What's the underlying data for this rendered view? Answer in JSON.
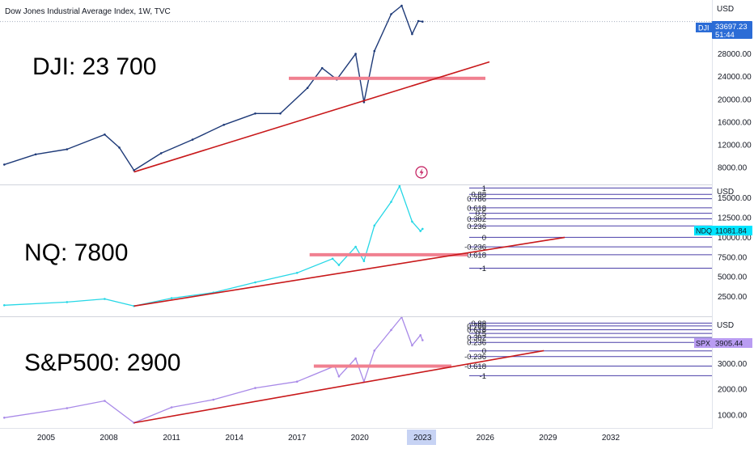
{
  "title": "Dow Jones Industrial Average Index, 1W, TVC",
  "colors": {
    "dji": "#1e3a78",
    "ndq": "#26d7e6",
    "spx": "#a98ae8",
    "trendline": "#c8181a",
    "support": "#f08090",
    "fib": "#4a3fa8",
    "badge_dji": "#2b6cd6",
    "badge_ndq": "#00e5ff",
    "badge_spx": "#b99cf2",
    "axis_highlight": "#c7d3f4"
  },
  "x_axis": {
    "ticks": [
      "2005",
      "2008",
      "2011",
      "2014",
      "2017",
      "2020",
      "2023",
      "2026",
      "2029",
      "2032"
    ],
    "highlighted": "2023"
  },
  "lightning_icon": "lightning-icon",
  "chart_data": [
    {
      "type": "line",
      "name": "DJI",
      "symbol": "DJI",
      "unit": "USD",
      "annotation": "DJI: 23 700",
      "last_value": "33697.23",
      "countdown": "51:44",
      "y_ticks": [
        "28000.00",
        "24000.00",
        "20000.00",
        "16000.00",
        "12000.00",
        "8000.00"
      ],
      "y_tick_values": [
        28000,
        24000,
        20000,
        16000,
        12000,
        8000
      ],
      "ylim": [
        5000,
        37500
      ],
      "support_level": 23700,
      "x": [
        2003.0,
        2004.5,
        2006.0,
        2007.8,
        2008.5,
        2009.2,
        2010.5,
        2012.0,
        2013.5,
        2015.0,
        2016.2,
        2017.5,
        2018.2,
        2018.9,
        2019.8,
        2020.2,
        2020.7,
        2021.5,
        2022.0,
        2022.5,
        2022.8,
        2023.0
      ],
      "values": [
        8500,
        10300,
        11200,
        13800,
        11500,
        7500,
        10500,
        12900,
        15500,
        17500,
        17500,
        22000,
        25500,
        23500,
        28000,
        19500,
        28500,
        35000,
        36500,
        31500,
        33800,
        33700
      ],
      "trendline": {
        "x": [
          2009.2,
          2026.2
        ],
        "values": [
          7200,
          26600
        ]
      }
    },
    {
      "type": "line",
      "name": "NQ",
      "symbol": "NDQ",
      "unit": "USD",
      "annotation": "NQ: 7800",
      "last_value": "11081.84",
      "y_ticks": [
        "15000.00",
        "12500.00",
        "10000.00",
        "7500.00",
        "5000.00",
        "2500.00"
      ],
      "y_tick_values": [
        15000,
        12500,
        10000,
        7500,
        5000,
        2500
      ],
      "ylim": [
        0,
        16600
      ],
      "support_level": 7800,
      "fib_levels": [
        "1",
        "0.88",
        "0.786",
        "0.618",
        "0.5",
        "0.382",
        "0.236",
        "0",
        "-0.236",
        "-0.618",
        "-1"
      ],
      "fib_values": [
        16250,
        15450,
        14900,
        13750,
        13050,
        12350,
        11450,
        10000,
        8800,
        7800,
        6100
      ],
      "x": [
        2003.0,
        2006.0,
        2007.8,
        2009.2,
        2011.0,
        2013.0,
        2015.0,
        2017.0,
        2018.7,
        2019.0,
        2019.8,
        2020.2,
        2020.7,
        2021.5,
        2021.9,
        2022.5,
        2022.9,
        2023.0
      ],
      "values": [
        1400,
        1800,
        2200,
        1300,
        2300,
        3000,
        4300,
        5500,
        7300,
        6500,
        8800,
        7000,
        11500,
        14500,
        16500,
        12000,
        10800,
        11081.84
      ],
      "trendline": {
        "x": [
          2009.2,
          2029.8
        ],
        "values": [
          1300,
          10000
        ]
      }
    },
    {
      "type": "line",
      "name": "S&P500",
      "symbol": "SPX",
      "unit": "USD",
      "annotation": "S&P500: 2900",
      "last_value": "3905.44",
      "y_ticks": [
        "3000.00",
        "2000.00",
        "1000.00"
      ],
      "y_tick_values": [
        3000,
        2000,
        1000
      ],
      "ylim": [
        500,
        4800
      ],
      "support_level": 2900,
      "fib_levels": [
        "0.88",
        "0.786",
        "0.618",
        "0.5",
        "0.382",
        "0.236",
        "0",
        "-0.236",
        "-0.618",
        "-1"
      ],
      "fib_values": [
        4570,
        4460,
        4310,
        4170,
        4010,
        3820,
        3490,
        3270,
        2900,
        2530
      ],
      "x": [
        2003.0,
        2006.0,
        2007.8,
        2009.2,
        2011.0,
        2013.0,
        2015.0,
        2017.0,
        2018.8,
        2019.0,
        2019.8,
        2020.2,
        2020.7,
        2021.5,
        2022.0,
        2022.5,
        2022.9,
        2023.0
      ],
      "values": [
        900,
        1270,
        1550,
        700,
        1300,
        1600,
        2050,
        2300,
        2900,
        2500,
        3200,
        2300,
        3500,
        4300,
        4800,
        3700,
        4100,
        3905.44
      ],
      "trendline": {
        "x": [
          2009.2,
          2028.8
        ],
        "values": [
          700,
          3500
        ]
      }
    }
  ]
}
